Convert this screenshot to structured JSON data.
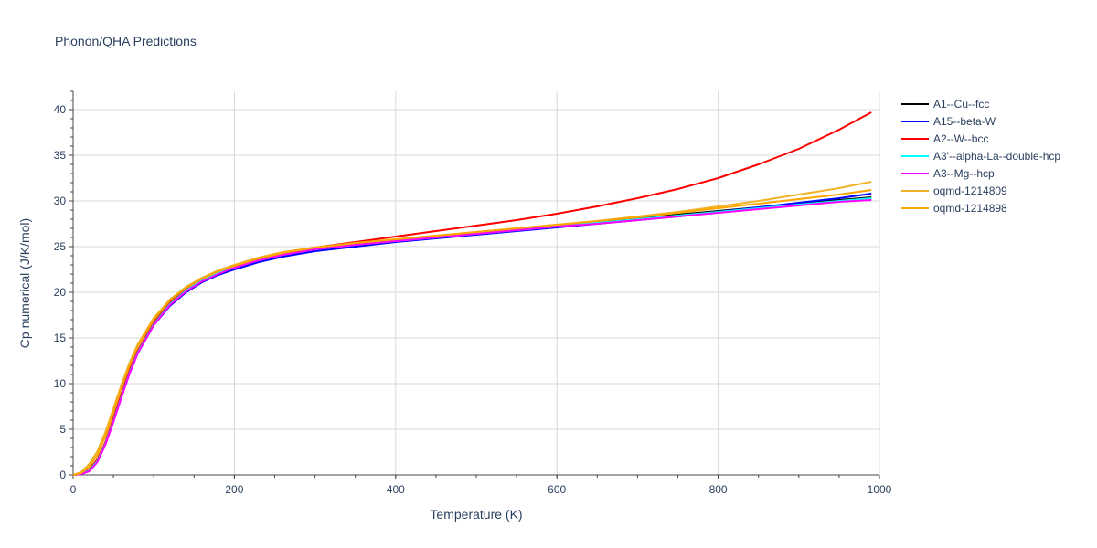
{
  "chart_data": {
    "type": "line",
    "title": "Phonon/QHA Predictions",
    "xlabel": "Temperature (K)",
    "ylabel": "Cp numerical (J/K/mol)",
    "xlim": [
      0,
      1000
    ],
    "ylim": [
      0,
      42
    ],
    "xticks": [
      0,
      200,
      400,
      600,
      800,
      1000
    ],
    "yticks": [
      0,
      5,
      10,
      15,
      20,
      25,
      30,
      35,
      40
    ],
    "grid": true,
    "legend_position": "right",
    "series": [
      {
        "name": "A1--Cu--fcc",
        "color": "#000000",
        "x": [
          0,
          10,
          20,
          30,
          40,
          50,
          60,
          70,
          80,
          100,
          120,
          140,
          160,
          180,
          200,
          230,
          260,
          300,
          350,
          400,
          450,
          500,
          550,
          600,
          650,
          700,
          750,
          800,
          850,
          900,
          950,
          990
        ],
        "y": [
          0,
          0.1,
          0.5,
          1.6,
          3.5,
          6.0,
          8.7,
          11.3,
          13.4,
          16.5,
          18.7,
          20.2,
          21.3,
          22.1,
          22.8,
          23.6,
          24.2,
          24.8,
          25.3,
          25.7,
          26.1,
          26.5,
          26.9,
          27.3,
          27.7,
          28.1,
          28.5,
          28.9,
          29.3,
          29.7,
          30.1,
          30.4
        ]
      },
      {
        "name": "A15--beta-W",
        "color": "#0000ff",
        "x": [
          0,
          10,
          20,
          30,
          40,
          50,
          60,
          70,
          80,
          100,
          120,
          140,
          160,
          180,
          200,
          230,
          260,
          300,
          350,
          400,
          450,
          500,
          550,
          600,
          650,
          700,
          750,
          800,
          850,
          900,
          950,
          990
        ],
        "y": [
          0,
          0.1,
          0.5,
          1.5,
          3.4,
          5.9,
          8.6,
          11.1,
          13.3,
          16.4,
          18.5,
          20.0,
          21.1,
          21.9,
          22.5,
          23.3,
          23.9,
          24.5,
          25.0,
          25.5,
          25.9,
          26.3,
          26.7,
          27.1,
          27.5,
          27.9,
          28.3,
          28.8,
          29.3,
          29.8,
          30.3,
          30.8
        ]
      },
      {
        "name": "A2--W--bcc",
        "color": "#ff0000",
        "x": [
          0,
          10,
          20,
          30,
          40,
          50,
          60,
          70,
          80,
          100,
          120,
          140,
          160,
          180,
          200,
          230,
          260,
          300,
          350,
          400,
          450,
          500,
          550,
          600,
          650,
          700,
          750,
          800,
          850,
          900,
          950,
          990
        ],
        "y": [
          0,
          0.1,
          0.6,
          1.7,
          3.6,
          6.2,
          8.9,
          11.5,
          13.6,
          16.7,
          18.9,
          20.4,
          21.5,
          22.3,
          22.9,
          23.7,
          24.3,
          24.9,
          25.5,
          26.1,
          26.7,
          27.3,
          27.9,
          28.6,
          29.4,
          30.3,
          31.3,
          32.5,
          34.0,
          35.7,
          37.8,
          39.7
        ]
      },
      {
        "name": "A3'--alpha-La--double-hcp",
        "color": "#00ffff",
        "x": [
          0,
          10,
          20,
          30,
          40,
          50,
          60,
          70,
          80,
          100,
          120,
          140,
          160,
          180,
          200,
          230,
          260,
          300,
          350,
          400,
          450,
          500,
          550,
          600,
          650,
          700,
          750,
          800,
          850,
          900,
          950,
          990
        ],
        "y": [
          0,
          0.1,
          0.5,
          1.5,
          3.4,
          5.9,
          8.6,
          11.2,
          13.4,
          16.5,
          18.7,
          20.2,
          21.3,
          22.1,
          22.7,
          23.5,
          24.1,
          24.7,
          25.2,
          25.6,
          26.0,
          26.4,
          26.8,
          27.2,
          27.6,
          28.0,
          28.4,
          28.8,
          29.2,
          29.6,
          30.0,
          30.3
        ]
      },
      {
        "name": "A3--Mg--hcp",
        "color": "#ff00ff",
        "x": [
          0,
          10,
          20,
          30,
          40,
          50,
          60,
          70,
          80,
          100,
          120,
          140,
          160,
          180,
          200,
          230,
          260,
          300,
          350,
          400,
          450,
          500,
          550,
          600,
          650,
          700,
          750,
          800,
          850,
          900,
          950,
          990
        ],
        "y": [
          0,
          0.1,
          0.4,
          1.4,
          3.3,
          5.8,
          8.5,
          11.1,
          13.3,
          16.4,
          18.6,
          20.1,
          21.2,
          22.0,
          22.7,
          23.5,
          24.1,
          24.7,
          25.2,
          25.6,
          26.0,
          26.4,
          26.8,
          27.2,
          27.5,
          27.9,
          28.3,
          28.7,
          29.1,
          29.5,
          29.9,
          30.1
        ]
      },
      {
        "name": "oqmd-1214809",
        "color": "#f0b428",
        "x": [
          0,
          10,
          20,
          30,
          40,
          50,
          60,
          70,
          80,
          100,
          120,
          140,
          160,
          180,
          200,
          230,
          260,
          300,
          350,
          400,
          450,
          500,
          550,
          600,
          650,
          700,
          750,
          800,
          850,
          900,
          950,
          990
        ],
        "y": [
          0,
          0.3,
          1.2,
          2.6,
          4.7,
          7.3,
          9.9,
          12.3,
          14.3,
          17.2,
          19.2,
          20.6,
          21.6,
          22.4,
          23.0,
          23.8,
          24.4,
          24.9,
          25.4,
          25.8,
          26.2,
          26.6,
          27.0,
          27.4,
          27.8,
          28.3,
          28.8,
          29.4,
          30.0,
          30.7,
          31.4,
          32.1
        ]
      },
      {
        "name": "oqmd-1214898",
        "color": "#ffa500",
        "x": [
          0,
          10,
          20,
          30,
          40,
          50,
          60,
          70,
          80,
          100,
          120,
          140,
          160,
          180,
          200,
          230,
          260,
          300,
          350,
          400,
          450,
          500,
          550,
          600,
          650,
          700,
          750,
          800,
          850,
          900,
          950,
          990
        ],
        "y": [
          0,
          0.2,
          0.9,
          2.2,
          4.3,
          6.9,
          9.6,
          12.0,
          14.1,
          17.0,
          19.1,
          20.5,
          21.5,
          22.3,
          22.9,
          23.7,
          24.3,
          24.9,
          25.4,
          25.8,
          26.2,
          26.6,
          27.0,
          27.4,
          27.8,
          28.2,
          28.7,
          29.2,
          29.7,
          30.2,
          30.7,
          31.2
        ]
      }
    ]
  }
}
